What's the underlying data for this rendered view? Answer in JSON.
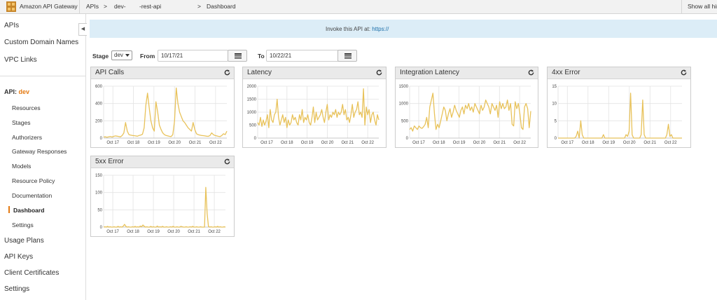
{
  "topbar": {
    "brand": "Amazon API Gateway",
    "crumbs": [
      "APIs",
      ">",
      "dev-",
      "-rest-api",
      ">",
      "Dashboard"
    ],
    "show_all": "Show all hin"
  },
  "sidebar": {
    "top_items": [
      "APIs",
      "Custom Domain Names",
      "VPC Links"
    ],
    "api_prefix": "API:",
    "api_stage": "dev",
    "sub_items": [
      "Resources",
      "Stages",
      "Authorizers",
      "Gateway Responses",
      "Models",
      "Resource Policy",
      "Documentation",
      "Dashboard",
      "Settings"
    ],
    "active_sub": "Dashboard",
    "bottom_items": [
      "Usage Plans",
      "API Keys",
      "Client Certificates",
      "Settings"
    ]
  },
  "banner": {
    "label": "Invoke this API at:",
    "url": "https://"
  },
  "filters": {
    "stage_label": "Stage",
    "stage_value": "dev",
    "from_label": "From",
    "from_value": "10/17/21",
    "to_label": "To",
    "to_value": "10/22/21"
  },
  "colors": {
    "line": "#e8c25a",
    "accent": "#e47911",
    "banner": "#dcedf7"
  },
  "icons": {
    "refresh": "refresh-icon",
    "calendar": "calendar-icon",
    "collapse": "chevron-left-icon"
  },
  "chart_data": [
    {
      "type": "line",
      "title": "API Calls",
      "xticks": [
        "Oct 17",
        "Oct 18",
        "Oct 19",
        "Oct 20",
        "Oct 21",
        "Oct 22"
      ],
      "yticks": [
        0,
        200,
        400,
        600
      ],
      "ylim": [
        0,
        600
      ],
      "grid": true,
      "values": [
        12,
        15,
        10,
        14,
        18,
        12,
        20,
        25,
        22,
        18,
        15,
        30,
        60,
        180,
        80,
        40,
        35,
        30,
        28,
        25,
        22,
        30,
        35,
        45,
        120,
        380,
        520,
        350,
        200,
        120,
        80,
        420,
        300,
        150,
        100,
        60,
        40,
        30,
        25,
        20,
        18,
        40,
        200,
        580,
        400,
        300,
        250,
        200,
        180,
        150,
        120,
        100,
        80,
        180,
        100,
        50,
        40,
        35,
        30,
        28,
        25,
        22,
        20,
        30,
        60,
        40,
        30,
        25,
        20,
        18,
        30,
        50,
        40,
        80
      ]
    },
    {
      "type": "line",
      "title": "Latency",
      "xticks": [
        "Oct 17",
        "Oct 18",
        "Oct 19",
        "Oct 20",
        "Oct 21",
        "Oct 22"
      ],
      "yticks": [
        0,
        500,
        1000,
        1500,
        2000
      ],
      "ylim": [
        0,
        2000
      ],
      "grid": true,
      "values": [
        600,
        500,
        800,
        450,
        700,
        500,
        650,
        900,
        400,
        1100,
        700,
        600,
        900,
        1000,
        1500,
        800,
        500,
        700,
        900,
        600,
        800,
        400,
        700,
        500,
        600,
        900,
        700,
        800,
        600,
        500,
        900,
        700,
        1100,
        600,
        800,
        700,
        900,
        600,
        500,
        800,
        1200,
        600,
        1000,
        700,
        800,
        900,
        1100,
        800,
        600,
        1000,
        1300,
        700,
        900,
        800,
        1000,
        900,
        1100,
        800,
        1000,
        900,
        1000,
        1300,
        900,
        1100,
        700,
        800,
        600,
        900,
        1300,
        800,
        1000,
        1100,
        1400,
        900,
        1000,
        800,
        1900,
        500,
        1200,
        900,
        1100,
        600,
        900,
        1000,
        700,
        500,
        900,
        700
      ]
    },
    {
      "type": "line",
      "title": "Integration Latency",
      "xticks": [
        "Oct 17",
        "Oct 18",
        "Oct 19",
        "Oct 20",
        "Oct 21",
        "Oct 22"
      ],
      "yticks": [
        0,
        500,
        1000,
        1500
      ],
      "ylim": [
        0,
        1500
      ],
      "grid": true,
      "values": [
        250,
        300,
        200,
        350,
        300,
        250,
        350,
        300,
        280,
        330,
        400,
        600,
        300,
        900,
        1100,
        1300,
        700,
        250,
        400,
        300,
        500,
        700,
        900,
        800,
        500,
        700,
        850,
        600,
        750,
        950,
        800,
        700,
        600,
        800,
        900,
        700,
        950,
        850,
        1000,
        800,
        900,
        750,
        1000,
        900,
        800,
        700,
        950,
        800,
        900,
        1100,
        1000,
        900,
        700,
        1000,
        900,
        800,
        950,
        600,
        1050,
        850,
        1000,
        850,
        900,
        1100,
        800,
        1000,
        400,
        350,
        1050,
        850,
        1000,
        700,
        300,
        250,
        900,
        1000,
        850,
        300,
        780
      ]
    },
    {
      "type": "line",
      "title": "4xx Error",
      "xticks": [
        "Oct 17",
        "Oct 18",
        "Oct 19",
        "Oct 20",
        "Oct 21",
        "Oct 22"
      ],
      "yticks": [
        0,
        5,
        10,
        15
      ],
      "ylim": [
        0,
        15
      ],
      "grid": true,
      "values": [
        0,
        0,
        0,
        0,
        0,
        0,
        0,
        0,
        0,
        0,
        0,
        0,
        0.5,
        2,
        0,
        5,
        1,
        0,
        0,
        0,
        0,
        0,
        0,
        0,
        0,
        0,
        0,
        0,
        0,
        0,
        1,
        0,
        0,
        0,
        0,
        0,
        0,
        0,
        0,
        0,
        0,
        0,
        0,
        0,
        0,
        1,
        0.5,
        2,
        13,
        1,
        0,
        0,
        0,
        0,
        0,
        1,
        11,
        1,
        0,
        0,
        0,
        0,
        0,
        0,
        0,
        0,
        0,
        0,
        0,
        0,
        0,
        0,
        1,
        4,
        0.5,
        1,
        0,
        0,
        0,
        0,
        0,
        0,
        0
      ]
    },
    {
      "type": "line",
      "title": "5xx Error",
      "xticks": [
        "Oct 17",
        "Oct 18",
        "Oct 19",
        "Oct 20",
        "Oct 21",
        "Oct 22"
      ],
      "yticks": [
        0,
        50,
        100,
        150
      ],
      "ylim": [
        0,
        150
      ],
      "grid": true,
      "values": [
        0,
        1,
        0,
        2,
        0,
        1,
        0,
        0,
        1,
        0,
        0,
        2,
        0,
        1,
        0,
        3,
        8,
        2,
        0,
        1,
        0,
        0,
        1,
        0,
        2,
        0,
        1,
        0,
        3,
        1,
        6,
        2,
        0,
        1,
        0,
        0,
        2,
        0,
        1,
        0,
        0,
        3,
        0,
        1,
        0,
        2,
        0,
        0,
        1,
        0,
        0,
        1,
        0,
        2,
        0,
        0,
        1,
        0,
        0,
        2,
        1,
        0,
        0,
        1,
        0,
        0,
        1,
        0,
        2,
        0,
        0,
        1,
        0,
        0,
        1,
        0,
        0,
        0,
        115,
        40,
        2,
        0,
        1,
        0,
        0,
        1,
        0,
        2,
        0,
        1,
        0,
        0,
        1,
        0
      ]
    }
  ]
}
